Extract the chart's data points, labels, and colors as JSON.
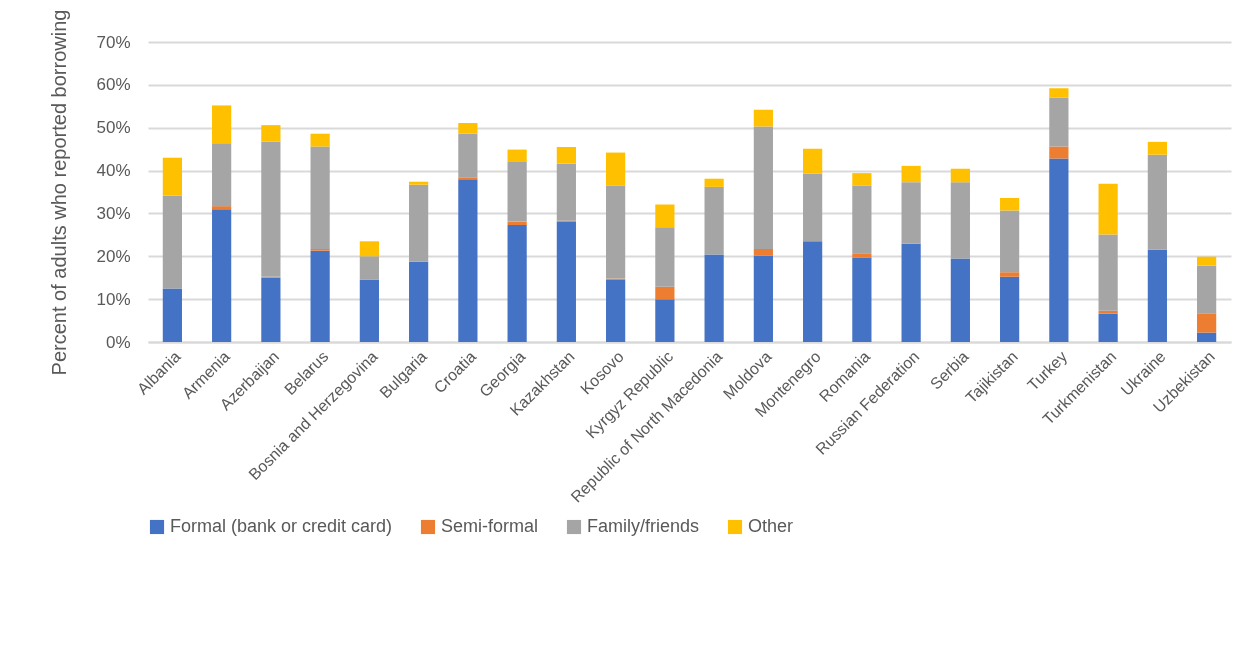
{
  "chart_data": {
    "type": "bar",
    "stacked": true,
    "ylabel": "Percent of adults who reported borrowing",
    "categories": [
      "Albania",
      "Armenia",
      "Azerbaijan",
      "Belarus",
      "Bosnia and Herzegovina",
      "Bulgaria",
      "Croatia",
      "Georgia",
      "Kazakhstan",
      "Kosovo",
      "Kyrgyz Republic",
      "Republic of North Macedonia",
      "Moldova",
      "Montenegro",
      "Romania",
      "Russian Federation",
      "Serbia",
      "Tajikistan",
      "Turkey",
      "Turkmenistan",
      "Ukraine",
      "Uzbekistan"
    ],
    "series": [
      {
        "name": "Formal (bank or credit card)",
        "color": "#4472c4",
        "values": [
          12.5,
          31,
          15,
          21.3,
          14.6,
          18.7,
          38,
          27.3,
          28.1,
          14.5,
          10,
          20.4,
          20.2,
          23.5,
          19.7,
          22.9,
          19.5,
          15.2,
          42.8,
          6.6,
          21.5,
          2.2
        ]
      },
      {
        "name": "Semi-formal",
        "color": "#ed7d31",
        "values": [
          null,
          0.7,
          0.2,
          0.4,
          null,
          null,
          0.3,
          0.8,
          0.2,
          0.3,
          2.9,
          null,
          1.5,
          null,
          1.0,
          null,
          null,
          1.1,
          2.8,
          0.7,
          null,
          4.5
        ]
      },
      {
        "name": "Family/friends",
        "color": "#a5a5a5",
        "values": [
          21.7,
          14.7,
          31.6,
          23.9,
          5.4,
          18,
          10.3,
          13.9,
          13.3,
          21.7,
          13.9,
          15.8,
          28.6,
          15.8,
          15.8,
          14.4,
          17.8,
          14.4,
          11.4,
          17.8,
          22.2,
          11.1
        ]
      },
      {
        "name": "Other",
        "color": "#ffc000",
        "values": [
          8.8,
          8.8,
          3.8,
          3.0,
          3.5,
          0.7,
          2.5,
          2.9,
          3.9,
          7.7,
          5.3,
          1.9,
          3.9,
          5.8,
          2.9,
          3.8,
          3.1,
          2.9,
          2.2,
          11.8,
          3.0,
          2.1
        ]
      }
    ],
    "ylim": [
      0,
      70
    ],
    "yticks": [
      {
        "value": 0,
        "label": "0%"
      },
      {
        "value": 10,
        "label": "10%"
      },
      {
        "value": 20,
        "label": "20%"
      },
      {
        "value": 30,
        "label": "30%"
      },
      {
        "value": 40,
        "label": "40%"
      },
      {
        "value": 50,
        "label": "50%"
      },
      {
        "value": 60,
        "label": "60%"
      },
      {
        "value": 70,
        "label": "70%"
      }
    ],
    "grid": "y",
    "legend": "bottom"
  }
}
